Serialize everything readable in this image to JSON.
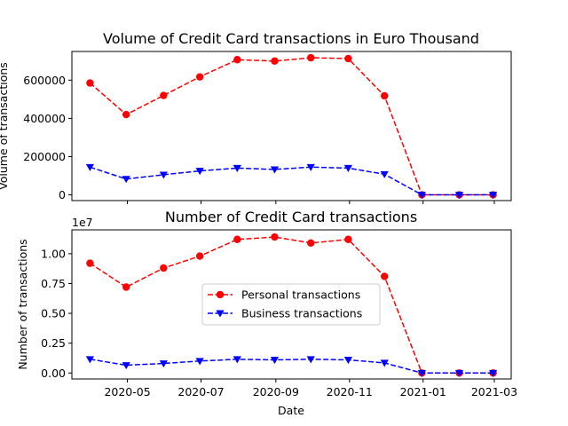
{
  "chart_data": [
    {
      "type": "line",
      "title": "Volume of Credit Card transactions in Euro Thousand",
      "xlabel": "",
      "ylabel": "Volume of transactions",
      "x": [
        "2020-03-31",
        "2020-04-30",
        "2020-05-31",
        "2020-06-30",
        "2020-07-31",
        "2020-08-31",
        "2020-09-30",
        "2020-10-31",
        "2020-11-30",
        "2020-12-31",
        "2021-01-31",
        "2021-02-28"
      ],
      "series": [
        {
          "name": "Personal transactions",
          "color": "#ff0000",
          "marker": "circle",
          "linestyle": "dashed",
          "values": [
            585000,
            420000,
            520000,
            617000,
            707000,
            700000,
            717000,
            713000,
            518000,
            0,
            0,
            0
          ]
        },
        {
          "name": "Business transactions",
          "color": "#0000ff",
          "marker": "triangle-down",
          "linestyle": "dashed",
          "values": [
            145000,
            83000,
            105000,
            125000,
            140000,
            133000,
            145000,
            140000,
            108000,
            0,
            0,
            0
          ]
        }
      ],
      "ylim": [
        -30000,
        750000
      ],
      "yticks": [
        0,
        200000,
        400000,
        600000
      ],
      "ytick_labels": [
        "0",
        "200000",
        "400000",
        "600000"
      ],
      "xticks": [
        "2020-05-01",
        "2020-07-01",
        "2020-09-01",
        "2020-11-01",
        "2021-01-01",
        "2021-03-01"
      ],
      "xtick_labels": [
        "",
        "",
        "",
        "",
        "",
        ""
      ],
      "legend": null,
      "grid": false
    },
    {
      "type": "line",
      "title": "Number of Credit Card transactions",
      "xlabel": "Date",
      "ylabel": "Number of transactions",
      "y_offset_label": "1e7",
      "x": [
        "2020-03-31",
        "2020-04-30",
        "2020-05-31",
        "2020-06-30",
        "2020-07-31",
        "2020-08-31",
        "2020-09-30",
        "2020-10-31",
        "2020-11-30",
        "2020-12-31",
        "2021-01-31",
        "2021-02-28"
      ],
      "series": [
        {
          "name": "Personal transactions",
          "color": "#ff0000",
          "marker": "circle",
          "linestyle": "dashed",
          "values": [
            9200000,
            7200000,
            8800000,
            9800000,
            11200000,
            11400000,
            10900000,
            11200000,
            8100000,
            0,
            0,
            0
          ]
        },
        {
          "name": "Business transactions",
          "color": "#0000ff",
          "marker": "triangle-down",
          "linestyle": "dashed",
          "values": [
            1150000,
            650000,
            800000,
            1000000,
            1150000,
            1100000,
            1150000,
            1100000,
            850000,
            0,
            0,
            0
          ]
        }
      ],
      "ylim": [
        -500000,
        12000000
      ],
      "yticks": [
        0,
        2500000,
        5000000,
        7500000,
        10000000
      ],
      "ytick_labels": [
        "0.00",
        "0.25",
        "0.50",
        "0.75",
        "1.00"
      ],
      "xticks": [
        "2020-05-01",
        "2020-07-01",
        "2020-09-01",
        "2020-11-01",
        "2021-01-01",
        "2021-03-01"
      ],
      "xtick_labels": [
        "2020-05",
        "2020-07",
        "2020-09",
        "2020-11",
        "2021-01",
        "2021-03"
      ],
      "legend": "center",
      "grid": false
    }
  ]
}
